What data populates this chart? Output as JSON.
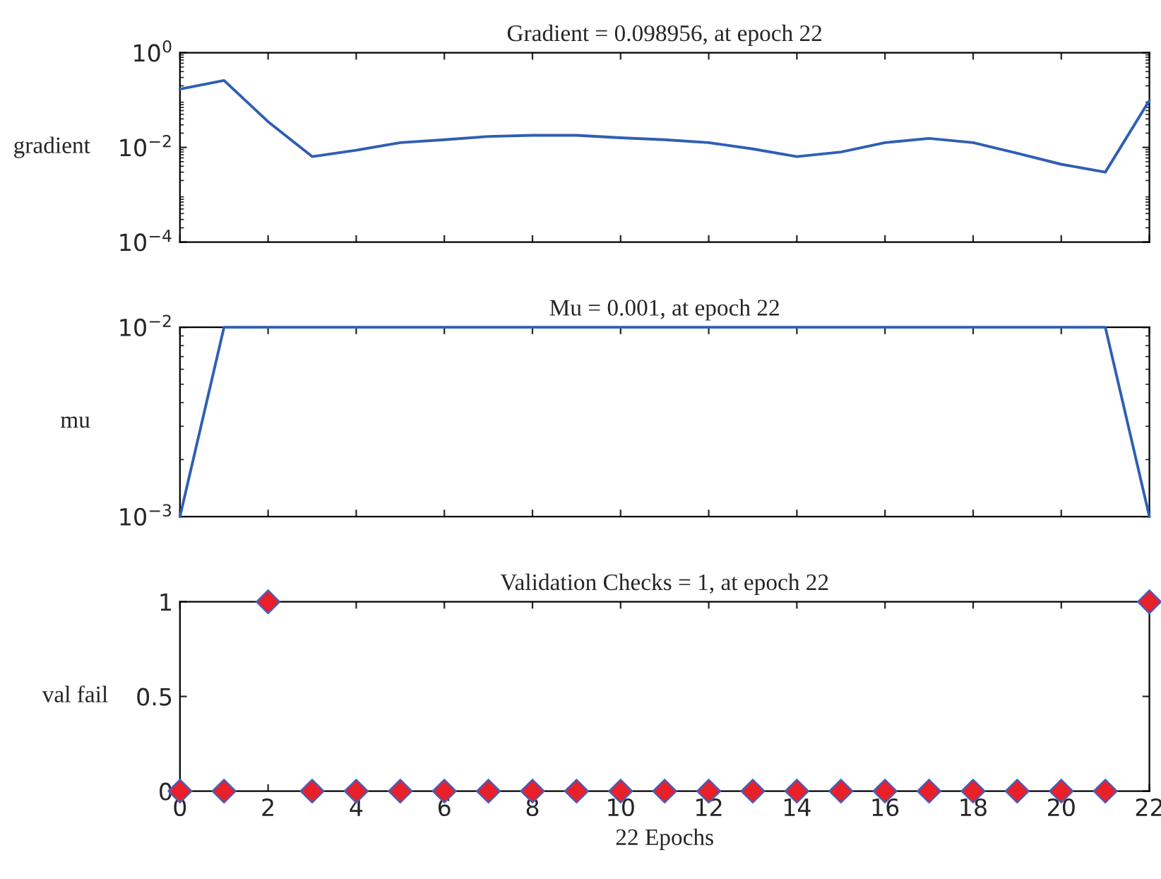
{
  "chart_data": [
    {
      "type": "line",
      "title": "Gradient = 0.098956, at epoch 22",
      "ylabel": "gradient",
      "log": "y",
      "grid": false,
      "tick_labels": "y",
      "legend": false,
      "x": [
        0,
        1,
        2,
        3,
        4,
        5,
        6,
        7,
        8,
        9,
        10,
        11,
        12,
        13,
        14,
        15,
        16,
        17,
        18,
        19,
        20,
        21,
        22
      ],
      "series": [
        {
          "color": "#2f5fb3",
          "values": [
            0.17,
            0.26,
            0.035,
            0.0064,
            0.0087,
            0.0126,
            0.0145,
            0.017,
            0.018,
            0.018,
            0.016,
            0.0145,
            0.0126,
            0.0093,
            0.0064,
            0.008,
            0.0126,
            0.0155,
            0.0126,
            0.0075,
            0.0044,
            0.003,
            0.098956
          ]
        }
      ],
      "xlim": [
        0,
        22
      ],
      "xticks": [
        0,
        2,
        4,
        6,
        8,
        10,
        12,
        14,
        16,
        18,
        20,
        22
      ],
      "ylim": [
        0.0001,
        1
      ],
      "yticks": [
        {
          "value": 0.0001,
          "label": "10$^{−4}$"
        },
        {
          "value": 0.01,
          "label": "10$^{−2}$"
        },
        {
          "value": 1,
          "label": "10$^{0}$"
        }
      ]
    },
    {
      "type": "line",
      "title": "Mu = 0.001, at epoch 22",
      "ylabel": "mu",
      "log": "y",
      "grid": false,
      "tick_labels": "y",
      "legend": false,
      "x": [
        0,
        1,
        2,
        3,
        4,
        5,
        6,
        7,
        8,
        9,
        10,
        11,
        12,
        13,
        14,
        15,
        16,
        17,
        18,
        19,
        20,
        21,
        22
      ],
      "series": [
        {
          "color": "#2f5fb3",
          "values": [
            0.001,
            0.01,
            0.01,
            0.01,
            0.01,
            0.01,
            0.01,
            0.01,
            0.01,
            0.01,
            0.01,
            0.01,
            0.01,
            0.01,
            0.01,
            0.01,
            0.01,
            0.01,
            0.01,
            0.01,
            0.01,
            0.01,
            0.001
          ]
        }
      ],
      "xlim": [
        0,
        22
      ],
      "xticks": [
        0,
        2,
        4,
        6,
        8,
        10,
        12,
        14,
        16,
        18,
        20,
        22
      ],
      "ylim": [
        0.001,
        0.01
      ],
      "yticks": [
        {
          "value": 0.001,
          "label": "10$^{−3}$"
        },
        {
          "value": 0.01,
          "label": "10$^{−2}$"
        }
      ]
    },
    {
      "type": "scatter",
      "title": "Validation Checks = 1, at epoch 22",
      "ylabel": "val fail",
      "xlabel": "22 Epochs",
      "grid": false,
      "legend": false,
      "marker": "diamond",
      "x": [
        0,
        1,
        2,
        3,
        4,
        5,
        6,
        7,
        8,
        9,
        10,
        11,
        12,
        13,
        14,
        15,
        16,
        17,
        18,
        19,
        20,
        21,
        22
      ],
      "series": [
        {
          "color": "#e8202a",
          "values": [
            0,
            0,
            1,
            0,
            0,
            0,
            0,
            0,
            0,
            0,
            0,
            0,
            0,
            0,
            0,
            0,
            0,
            0,
            0,
            0,
            0,
            0,
            1
          ]
        }
      ],
      "xlim": [
        0,
        22
      ],
      "xticks": [
        0,
        2,
        4,
        6,
        8,
        10,
        12,
        14,
        16,
        18,
        20,
        22
      ],
      "ylim": [
        0,
        1
      ],
      "yticks": [
        0,
        0.5,
        1
      ]
    }
  ]
}
